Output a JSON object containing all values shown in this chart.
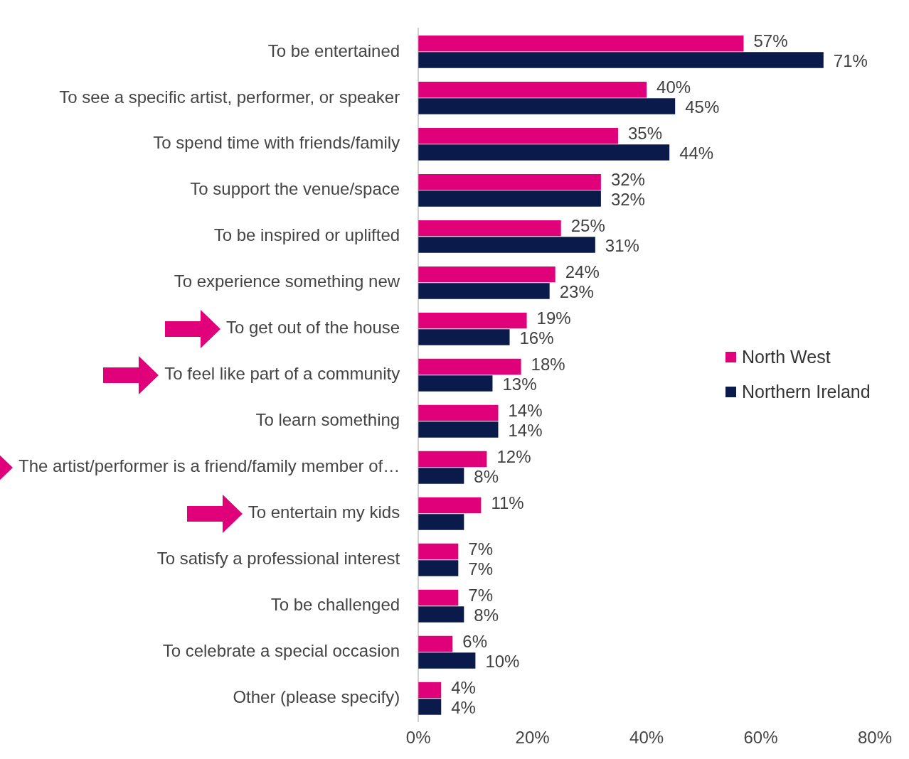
{
  "chart_data": {
    "type": "bar",
    "orientation": "horizontal",
    "categories": [
      "To be entertained",
      "To see a specific artist, performer, or speaker",
      "To spend time with friends/family",
      "To support the venue/space",
      "To be inspired or uplifted",
      "To experience something new",
      "To get out of the house",
      "To feel like part of a community",
      "To learn something",
      "The artist/performer is a friend/family member of…",
      "To entertain my kids",
      "To satisfy a professional interest",
      "To be challenged",
      "To celebrate a special occasion",
      "Other (please specify)"
    ],
    "series": [
      {
        "name": "North West",
        "color": "#e0007a",
        "values": [
          57,
          40,
          35,
          32,
          25,
          24,
          19,
          18,
          14,
          12,
          11,
          7,
          7,
          6,
          4
        ],
        "value_labels": [
          "57%",
          "40%",
          "35%",
          "32%",
          "25%",
          "24%",
          "19%",
          "18%",
          "14%",
          "12%",
          "11%",
          "7%",
          "7%",
          "6%",
          "4%"
        ]
      },
      {
        "name": "Northern Ireland",
        "color": "#0a1a4a",
        "values": [
          71,
          45,
          44,
          32,
          31,
          23,
          16,
          13,
          14,
          8,
          8,
          7,
          8,
          10,
          4
        ],
        "value_labels": [
          "71%",
          "45%",
          "44%",
          "32%",
          "31%",
          "23%",
          "16%",
          "13%",
          "14%",
          "8%",
          null,
          "7%",
          "8%",
          "10%",
          "4%"
        ]
      }
    ],
    "xlim": [
      0,
      80
    ],
    "xticks": [
      {
        "value": 0,
        "label": "0%"
      },
      {
        "value": 20,
        "label": "20%"
      },
      {
        "value": 40,
        "label": "40%"
      },
      {
        "value": 60,
        "label": "60%"
      },
      {
        "value": 80,
        "label": "80%"
      }
    ],
    "grid": false,
    "legend": "right"
  }
}
